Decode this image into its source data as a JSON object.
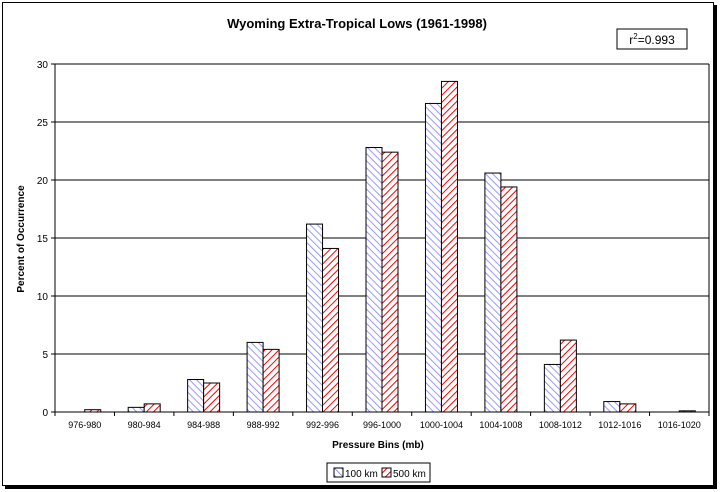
{
  "chart_data": {
    "type": "bar",
    "title": "Wyoming Extra-Tropical Lows (1961-1998)",
    "annotation": {
      "prefix": "r",
      "superscript": "2",
      "suffix": "=0.993"
    },
    "xlabel": "Pressure Bins (mb)",
    "ylabel": "Percent of Occurrence",
    "ylim": [
      0,
      30
    ],
    "yticks": [
      "0",
      "5",
      "10",
      "15",
      "20",
      "25",
      "30"
    ],
    "grid": true,
    "legend_position": "bottom-center",
    "categories": [
      "976-980",
      "980-984",
      "984-988",
      "988-992",
      "992-996",
      "996-1000",
      "1000-1004",
      "1004-1008",
      "1008-1012",
      "1012-1016",
      "1016-1020"
    ],
    "series": [
      {
        "name": "100 km",
        "color": "#9999ff",
        "pattern": "diagonal-hatch-blue",
        "values": [
          0,
          0.4,
          2.8,
          6.0,
          16.2,
          22.8,
          26.6,
          20.6,
          4.1,
          0.9,
          0
        ]
      },
      {
        "name": "500 km",
        "color": "#ff0000",
        "pattern": "diagonal-hatch-red",
        "values": [
          0.2,
          0.7,
          2.5,
          5.4,
          14.1,
          22.4,
          28.5,
          19.4,
          6.2,
          0.7,
          0.1
        ]
      }
    ]
  }
}
